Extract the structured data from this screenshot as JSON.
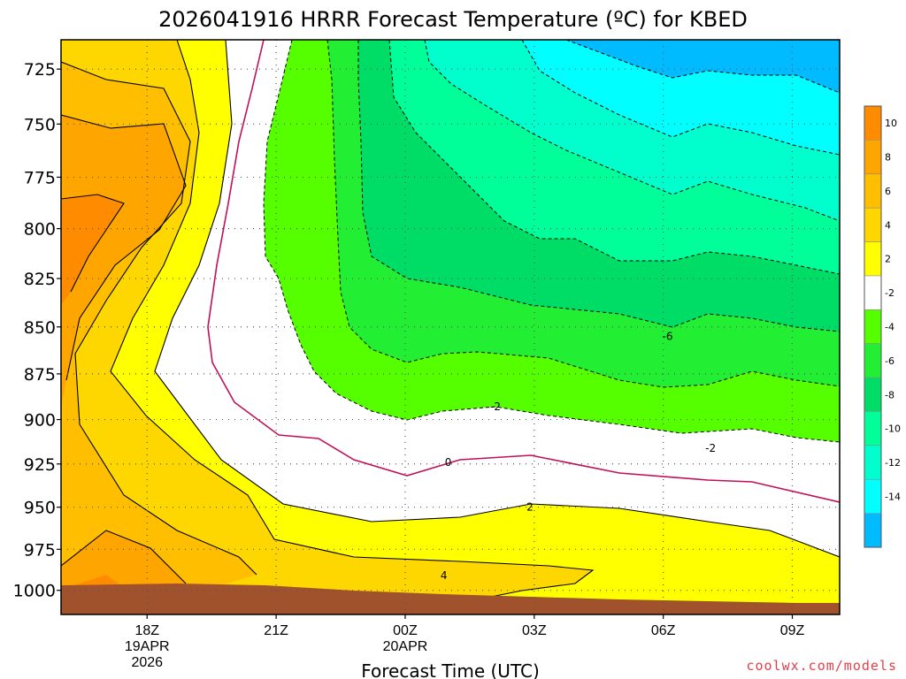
{
  "chart_data": {
    "type": "contour",
    "title": "2026041916 HRRR Forecast Temperature (ºC) for KBED",
    "xlabel": "Forecast Time (UTC)",
    "ylabel": "",
    "y_ticks": [
      725,
      750,
      775,
      800,
      825,
      850,
      875,
      900,
      925,
      950,
      975,
      1000
    ],
    "y_tick_labels": [
      "725",
      "750",
      "775",
      "800",
      "825",
      "850",
      "875",
      "900",
      "925",
      "950",
      "975",
      "1000"
    ],
    "ylim": [
      1015,
      712
    ],
    "x_ticks": [
      {
        "hour": 18,
        "lines": [
          "18Z",
          "19APR",
          "2026"
        ]
      },
      {
        "hour": 21,
        "lines": [
          "21Z"
        ]
      },
      {
        "hour": 24,
        "lines": [
          "00Z",
          "20APR"
        ]
      },
      {
        "hour": 27,
        "lines": [
          "03Z"
        ]
      },
      {
        "hour": 30,
        "lines": [
          "06Z"
        ]
      },
      {
        "hour": 33,
        "lines": [
          "09Z"
        ]
      }
    ],
    "xlim": [
      16.0,
      34.1
    ],
    "colorbar": {
      "levels": [
        "10",
        "8",
        "6",
        "4",
        "2",
        "-2",
        "-4",
        "-6",
        "-8",
        "-10",
        "-12",
        "-14"
      ],
      "colors": [
        "#ff8c00",
        "#ffa500",
        "#ffbf00",
        "#ffd700",
        "#ffff00",
        "#ffffff",
        "#55ff00",
        "#22ee33",
        "#00dd66",
        "#00ff99",
        "#00ffcc",
        "#00ffff",
        "#00bbff"
      ]
    },
    "fill_colors": {
      "t10": "#ff8c00",
      "t8": "#ffa500",
      "t6": "#ffbf00",
      "t4": "#ffd700",
      "t2": "#ffff00",
      "zero": "#ffffff",
      "m2": "#55ff00",
      "m4": "#22ee33",
      "m6": "#00dd66",
      "m8": "#00ff99",
      "m10": "#00ffcc",
      "m12": "#00ffff",
      "m14": "#00bbff",
      "ground": "#a0522d"
    },
    "contour_labels": [
      {
        "text": "-6",
        "hour": 30.1,
        "p": 855
      },
      {
        "text": "-2",
        "hour": 26.1,
        "p": 893
      },
      {
        "text": "-2",
        "hour": 31.1,
        "p": 916
      },
      {
        "text": "0",
        "hour": 25.0,
        "p": 924
      },
      {
        "text": "2",
        "hour": 26.9,
        "p": 950
      },
      {
        "text": "4",
        "hour": 24.9,
        "p": 991
      }
    ]
  },
  "credit": "coolwx.com/models"
}
